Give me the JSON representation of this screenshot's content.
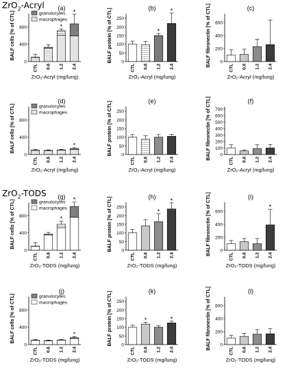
{
  "section_labels": {
    "acryl_main": "ZrO",
    "acryl_sub": "2",
    "acryl_tail": "-Acryl",
    "tods_main": "ZrO",
    "tods_sub": "2",
    "tods_tail": "-TODS"
  },
  "colors": {
    "ctl": "#ffffff",
    "dose_0_6": "#c8c8c8",
    "dose_1_2": "#8c8c8c",
    "dose_2_4": "#3c3c3c",
    "granulocytes": "#7f7f7f",
    "macrophages_acryl": "#e3e3e3",
    "macrophages_tods": "#ffffff"
  },
  "chart_data": [
    {
      "panel": "(a)",
      "type": "bar",
      "stacked": true,
      "categories": [
        "CTL",
        "0.6",
        "1.2",
        "2.4"
      ],
      "series": [
        {
          "name": "macrophages",
          "values": [
            95,
            310,
            610,
            590
          ]
        },
        {
          "name": "granulocytes",
          "values": [
            5,
            20,
            100,
            280
          ]
        }
      ],
      "errors": [
        70,
        60,
        40,
        220
      ],
      "significant": [
        false,
        false,
        true,
        true
      ],
      "legend": [
        "granulocytes",
        "macrophages"
      ],
      "ylabel": "BALF cells [% of CTL]",
      "xlabel": "ZrO₂-Acryl (mg/lung)",
      "ylim": [
        0,
        1200
      ],
      "yticks": [
        0,
        400,
        800,
        1200
      ]
    },
    {
      "panel": "(b)",
      "type": "bar",
      "categories": [
        "CTL",
        "0.6",
        "1.2",
        "2.4"
      ],
      "values": [
        100,
        98,
        150,
        220
      ],
      "errors": [
        18,
        18,
        12,
        60
      ],
      "significant": [
        false,
        false,
        true,
        true
      ],
      "ylabel": "BALF protein [% of CTL]",
      "xlabel": "ZrO₂-Acryl (mg/lung)",
      "ylim": [
        0,
        300
      ],
      "yticks": [
        0,
        50,
        100,
        150,
        200,
        250,
        300
      ]
    },
    {
      "panel": "(c)",
      "type": "bar",
      "categories": [
        "CTL",
        "0.6",
        "1.2",
        "2.4"
      ],
      "values": [
        100,
        110,
        230,
        260
      ],
      "errors": [
        80,
        80,
        110,
        380
      ],
      "significant": [
        false,
        false,
        false,
        false
      ],
      "ylabel": "BALF fibronectin [% of CTL]",
      "xlabel": "ZrO₂-Acryl (mg/lung)",
      "ylim": [
        0,
        800
      ],
      "yticks": [
        0,
        200,
        400,
        600,
        800
      ]
    },
    {
      "panel": "(d)",
      "type": "bar",
      "stacked": true,
      "categories": [
        "CTL",
        "0.6",
        "1.2",
        "2.4"
      ],
      "series": [
        {
          "name": "macrophages",
          "values": [
            95,
            90,
            100,
            115
          ]
        },
        {
          "name": "granulocytes",
          "values": [
            5,
            5,
            5,
            20
          ]
        }
      ],
      "errors": [
        20,
        15,
        15,
        25
      ],
      "significant": [
        false,
        false,
        false,
        true
      ],
      "legend": [
        "granulocytes",
        "macrophages"
      ],
      "ylabel": "BALF cells [% of CTL]",
      "xlabel": "ZrO₂-Acryl (mg/lung)",
      "ylim": [
        0,
        1200
      ],
      "yticks": [
        0,
        400,
        800,
        1200
      ]
    },
    {
      "panel": "(e)",
      "type": "bar",
      "categories": [
        "CTL",
        "0.6",
        "1.2",
        "2.4"
      ],
      "values": [
        100,
        88,
        100,
        105
      ],
      "errors": [
        15,
        20,
        15,
        12
      ],
      "significant": [
        false,
        false,
        false,
        false
      ],
      "ylabel": "BALF protein [% of CTL]",
      "xlabel": "ZrO₂-Acryl (mg/lung)",
      "ylim": [
        0,
        300
      ],
      "yticks": [
        0,
        50,
        100,
        150,
        200,
        250,
        300
      ]
    },
    {
      "panel": "(f)",
      "type": "bar",
      "categories": [
        "CTL",
        "0.6",
        "1.2",
        "2.4"
      ],
      "values": [
        100,
        55,
        90,
        100
      ],
      "errors": [
        50,
        15,
        60,
        55
      ],
      "significant": [
        false,
        false,
        false,
        false
      ],
      "ylabel": "BALF fibronectin [% of CTL]",
      "xlabel": "ZrO₂-Acryl (mg/lung)",
      "ylim": [
        0,
        800
      ],
      "yticks": [
        0,
        100,
        200,
        300,
        400,
        500,
        600,
        700,
        800
      ]
    },
    {
      "panel": "(g)",
      "type": "bar",
      "stacked": true,
      "categories": [
        "CTL",
        "0.6",
        "1.2",
        "2.4"
      ],
      "series": [
        {
          "name": "macrophages",
          "values": [
            90,
            350,
            520,
            760
          ]
        },
        {
          "name": "granulocytes",
          "values": [
            5,
            20,
            80,
            250
          ]
        }
      ],
      "errors": [
        80,
        40,
        70,
        100
      ],
      "significant": [
        false,
        false,
        true,
        true
      ],
      "legend": [
        "granulocytes",
        "macrophages"
      ],
      "ylabel": "BALF cells [% of CTL]",
      "xlabel": "ZrO₂-TODS (mg/lung)",
      "ylim": [
        0,
        1200
      ],
      "yticks": [
        0,
        400,
        800,
        1200
      ]
    },
    {
      "panel": "(h)",
      "type": "bar",
      "categories": [
        "CTL",
        "0.6",
        "1.2",
        "2.4"
      ],
      "values": [
        100,
        140,
        165,
        238
      ],
      "errors": [
        20,
        35,
        45,
        35
      ],
      "significant": [
        false,
        false,
        true,
        true
      ],
      "ylabel": "BALF protein [% of CTL]",
      "xlabel": "ZrO₂-TODS (mg/lung)",
      "ylim": [
        0,
        300
      ],
      "yticks": [
        0,
        50,
        100,
        150,
        200,
        250,
        300
      ]
    },
    {
      "panel": "(i)",
      "type": "bar",
      "categories": [
        "CTL",
        "0.6",
        "1.2",
        "2.4"
      ],
      "values": [
        100,
        130,
        100,
        390
      ],
      "errors": [
        50,
        50,
        80,
        240
      ],
      "significant": [
        false,
        false,
        false,
        true
      ],
      "ylabel": "BALF fibronectin [% of CTL]",
      "xlabel": "ZrO₂-TODS (mg/lung)",
      "ylim": [
        0,
        800
      ],
      "yticks": [
        0,
        200,
        400,
        600,
        800
      ]
    },
    {
      "panel": "(j)",
      "type": "bar",
      "stacked": true,
      "categories": [
        "CTL",
        "0.6",
        "1.2",
        "2.4"
      ],
      "series": [
        {
          "name": "macrophages",
          "values": [
            95,
            85,
            100,
            140
          ]
        },
        {
          "name": "granulocytes",
          "values": [
            5,
            5,
            5,
            20
          ]
        }
      ],
      "errors": [
        20,
        15,
        10,
        25
      ],
      "significant": [
        false,
        false,
        false,
        true
      ],
      "legend": [
        "granulocytes",
        "macrophages"
      ],
      "ylabel": "BALF cells [% of CTL]",
      "xlabel": "ZrO₂-TODS (mg/lung)",
      "ylim": [
        0,
        1200
      ],
      "yticks": [
        0,
        400,
        800,
        1200
      ]
    },
    {
      "panel": "(k)",
      "type": "bar",
      "categories": [
        "CTL",
        "0.6",
        "1.2",
        "2.4"
      ],
      "values": [
        100,
        118,
        100,
        125
      ],
      "errors": [
        12,
        10,
        10,
        10
      ],
      "significant": [
        false,
        true,
        false,
        true
      ],
      "ylabel": "BALF protein [% of CTL]",
      "xlabel": "ZrO₂-TODS (mg/lung)",
      "ylim": [
        0,
        300
      ],
      "yticks": [
        0,
        50,
        100,
        150,
        200,
        250,
        300
      ]
    },
    {
      "panel": "(l)",
      "type": "bar",
      "categories": [
        "CTL",
        "0.6",
        "1.2",
        "2.4"
      ],
      "values": [
        100,
        125,
        160,
        165
      ],
      "errors": [
        40,
        50,
        70,
        80
      ],
      "significant": [
        false,
        false,
        false,
        false
      ],
      "ylabel": "BALF fibronectin [% of CTL]",
      "xlabel": "ZrO₂-TODS (mg/lung)",
      "ylim": [
        0,
        800
      ],
      "yticks": [
        0,
        200,
        400,
        600,
        800
      ]
    }
  ]
}
